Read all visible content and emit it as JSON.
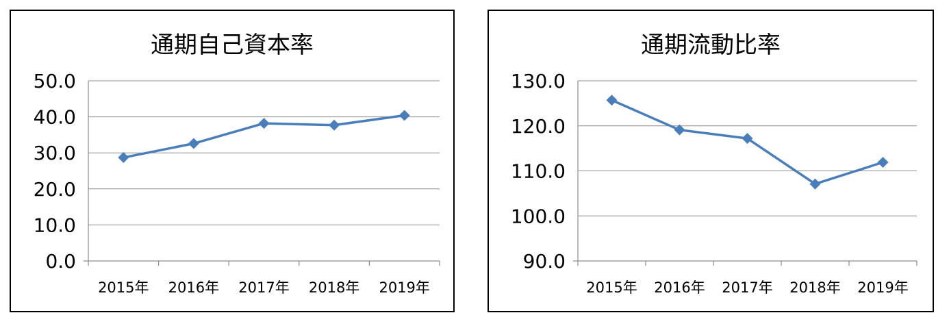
{
  "chart_data": [
    {
      "type": "line",
      "title": "通期自己資本率",
      "xlabel": "",
      "ylabel": "",
      "categories": [
        "2015年",
        "2016年",
        "2017年",
        "2018年",
        "2019年"
      ],
      "series": [
        {
          "values": [
            28.7,
            32.6,
            38.2,
            37.7,
            40.4
          ]
        }
      ],
      "ylim": [
        0,
        50
      ],
      "yticks": [
        "0.0",
        "10.0",
        "20.0",
        "30.0",
        "40.0",
        "50.0"
      ],
      "grid": true,
      "color": "#4a7ebb"
    },
    {
      "type": "line",
      "title": "通期流動比率",
      "xlabel": "",
      "ylabel": "",
      "categories": [
        "2015年",
        "2016年",
        "2017年",
        "2018年",
        "2019年"
      ],
      "series": [
        {
          "values": [
            125.7,
            119.1,
            117.2,
            107.1,
            111.9
          ]
        }
      ],
      "ylim": [
        90,
        130
      ],
      "yticks": [
        "90.0",
        "100.0",
        "110.0",
        "120.0",
        "130.0"
      ],
      "grid": true,
      "color": "#4a7ebb"
    }
  ]
}
